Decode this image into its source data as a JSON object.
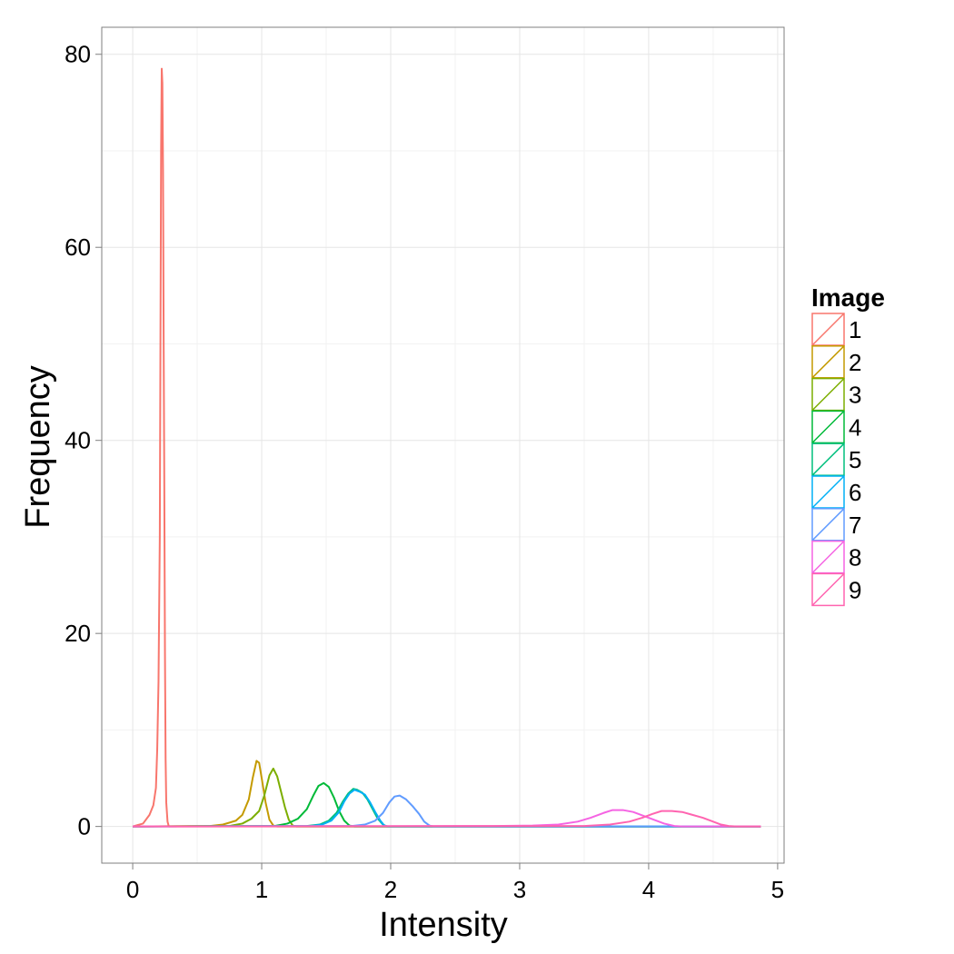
{
  "chart_data": {
    "type": "line",
    "xlabel": "Intensity",
    "ylabel": "Frequency",
    "xlim": [
      -0.24,
      5.05
    ],
    "ylim": [
      -3.8,
      82.8
    ],
    "x_ticks": [
      "0",
      "1",
      "2",
      "3",
      "4",
      "5"
    ],
    "y_ticks": [
      "0",
      "20",
      "40",
      "60",
      "80"
    ],
    "grid": true,
    "legend": {
      "title": "Image",
      "position": "right"
    },
    "series": [
      {
        "name": "1",
        "color": "#F8766D",
        "points": [
          [
            0.0,
            0.0
          ],
          [
            0.08,
            0.3
          ],
          [
            0.13,
            1.2
          ],
          [
            0.16,
            2.2
          ],
          [
            0.18,
            4.0
          ],
          [
            0.19,
            8.0
          ],
          [
            0.2,
            15.0
          ],
          [
            0.21,
            30.0
          ],
          [
            0.215,
            50.0
          ],
          [
            0.22,
            70.0
          ],
          [
            0.225,
            78.5
          ],
          [
            0.23,
            77.0
          ],
          [
            0.235,
            68.0
          ],
          [
            0.24,
            50.0
          ],
          [
            0.245,
            35.0
          ],
          [
            0.25,
            18.0
          ],
          [
            0.255,
            7.0
          ],
          [
            0.26,
            2.5
          ],
          [
            0.27,
            0.5
          ],
          [
            0.28,
            0.0
          ],
          [
            4.87,
            0.0
          ]
        ]
      },
      {
        "name": "2",
        "color": "#C49A00",
        "points": [
          [
            0.0,
            0.0
          ],
          [
            0.6,
            0.05
          ],
          [
            0.7,
            0.2
          ],
          [
            0.8,
            0.6
          ],
          [
            0.85,
            1.2
          ],
          [
            0.9,
            2.8
          ],
          [
            0.93,
            5.0
          ],
          [
            0.96,
            6.8
          ],
          [
            0.98,
            6.6
          ],
          [
            1.0,
            5.0
          ],
          [
            1.03,
            2.5
          ],
          [
            1.06,
            0.7
          ],
          [
            1.09,
            0.1
          ],
          [
            1.12,
            0.0
          ],
          [
            4.87,
            0.0
          ]
        ]
      },
      {
        "name": "3",
        "color": "#7CAE00",
        "points": [
          [
            0.0,
            0.0
          ],
          [
            0.75,
            0.05
          ],
          [
            0.85,
            0.3
          ],
          [
            0.92,
            0.8
          ],
          [
            0.98,
            1.6
          ],
          [
            1.02,
            3.2
          ],
          [
            1.06,
            5.3
          ],
          [
            1.09,
            6.0
          ],
          [
            1.12,
            5.2
          ],
          [
            1.15,
            3.6
          ],
          [
            1.18,
            2.0
          ],
          [
            1.21,
            0.7
          ],
          [
            1.24,
            0.1
          ],
          [
            1.27,
            0.0
          ],
          [
            4.87,
            0.0
          ]
        ]
      },
      {
        "name": "4",
        "color": "#00BA38",
        "points": [
          [
            0.0,
            0.0
          ],
          [
            1.1,
            0.05
          ],
          [
            1.2,
            0.3
          ],
          [
            1.28,
            0.8
          ],
          [
            1.35,
            1.8
          ],
          [
            1.4,
            3.2
          ],
          [
            1.44,
            4.2
          ],
          [
            1.48,
            4.5
          ],
          [
            1.52,
            4.1
          ],
          [
            1.56,
            3.0
          ],
          [
            1.6,
            1.6
          ],
          [
            1.64,
            0.6
          ],
          [
            1.68,
            0.1
          ],
          [
            1.72,
            0.0
          ],
          [
            4.87,
            0.0
          ]
        ]
      },
      {
        "name": "5",
        "color": "#00BF7D",
        "points": [
          [
            0.0,
            0.0
          ],
          [
            1.35,
            0.05
          ],
          [
            1.45,
            0.2
          ],
          [
            1.52,
            0.6
          ],
          [
            1.58,
            1.4
          ],
          [
            1.63,
            2.6
          ],
          [
            1.67,
            3.4
          ],
          [
            1.71,
            3.9
          ],
          [
            1.74,
            3.8
          ],
          [
            1.78,
            3.5
          ],
          [
            1.82,
            2.8
          ],
          [
            1.86,
            1.8
          ],
          [
            1.9,
            0.8
          ],
          [
            1.94,
            0.2
          ],
          [
            1.97,
            0.0
          ],
          [
            4.87,
            0.0
          ]
        ]
      },
      {
        "name": "6",
        "color": "#00B0F6",
        "points": [
          [
            0.0,
            0.0
          ],
          [
            1.38,
            0.05
          ],
          [
            1.47,
            0.2
          ],
          [
            1.54,
            0.6
          ],
          [
            1.6,
            1.5
          ],
          [
            1.64,
            2.6
          ],
          [
            1.68,
            3.4
          ],
          [
            1.72,
            3.8
          ],
          [
            1.76,
            3.6
          ],
          [
            1.8,
            3.3
          ],
          [
            1.84,
            2.5
          ],
          [
            1.88,
            1.5
          ],
          [
            1.92,
            0.6
          ],
          [
            1.95,
            0.1
          ],
          [
            1.98,
            0.0
          ],
          [
            4.87,
            0.0
          ]
        ]
      },
      {
        "name": "7",
        "color": "#619CFF",
        "points": [
          [
            0.0,
            0.0
          ],
          [
            1.7,
            0.05
          ],
          [
            1.8,
            0.2
          ],
          [
            1.88,
            0.6
          ],
          [
            1.94,
            1.4
          ],
          [
            1.99,
            2.5
          ],
          [
            2.03,
            3.1
          ],
          [
            2.07,
            3.2
          ],
          [
            2.12,
            2.8
          ],
          [
            2.17,
            2.1
          ],
          [
            2.22,
            1.3
          ],
          [
            2.26,
            0.5
          ],
          [
            2.3,
            0.1
          ],
          [
            2.33,
            0.0
          ],
          [
            4.87,
            0.0
          ]
        ]
      },
      {
        "name": "8",
        "color": "#F564E3",
        "points": [
          [
            0.0,
            0.0
          ],
          [
            2.8,
            0.05
          ],
          [
            3.1,
            0.1
          ],
          [
            3.3,
            0.2
          ],
          [
            3.45,
            0.5
          ],
          [
            3.55,
            0.9
          ],
          [
            3.65,
            1.4
          ],
          [
            3.72,
            1.7
          ],
          [
            3.8,
            1.7
          ],
          [
            3.88,
            1.5
          ],
          [
            3.96,
            1.1
          ],
          [
            4.04,
            0.7
          ],
          [
            4.12,
            0.3
          ],
          [
            4.2,
            0.05
          ],
          [
            4.26,
            0.0
          ],
          [
            4.87,
            0.0
          ]
        ]
      },
      {
        "name": "9",
        "color": "#FF64B0",
        "points": [
          [
            0.0,
            0.0
          ],
          [
            3.5,
            0.05
          ],
          [
            3.7,
            0.2
          ],
          [
            3.85,
            0.5
          ],
          [
            3.95,
            0.9
          ],
          [
            4.03,
            1.3
          ],
          [
            4.1,
            1.6
          ],
          [
            4.18,
            1.6
          ],
          [
            4.26,
            1.5
          ],
          [
            4.34,
            1.2
          ],
          [
            4.42,
            0.9
          ],
          [
            4.5,
            0.5
          ],
          [
            4.56,
            0.2
          ],
          [
            4.62,
            0.05
          ],
          [
            4.68,
            0.0
          ],
          [
            4.87,
            0.0
          ]
        ]
      }
    ]
  }
}
